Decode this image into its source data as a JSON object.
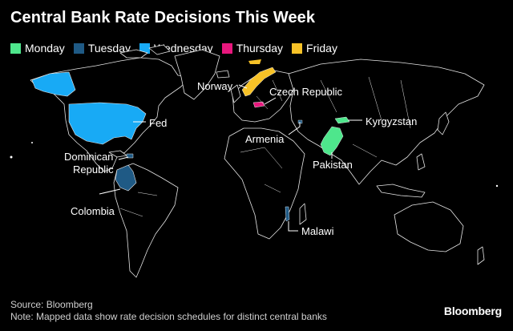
{
  "title": "Central Bank Rate Decisions This Week",
  "legend": [
    {
      "label": "Monday",
      "color": "#4ee68c"
    },
    {
      "label": "Tuesday",
      "color": "#1f5a85"
    },
    {
      "label": "Wednesday",
      "color": "#18aaf5"
    },
    {
      "label": "Thursday",
      "color": "#e8177d"
    },
    {
      "label": "Friday",
      "color": "#f7c227"
    }
  ],
  "countries": [
    {
      "name": "Fed",
      "day": "Wednesday"
    },
    {
      "name": "Dominican Republic",
      "line1": "Dominican",
      "line2": "Republic",
      "day": "Tuesday"
    },
    {
      "name": "Colombia",
      "day": "Tuesday"
    },
    {
      "name": "Norway",
      "day": "Friday"
    },
    {
      "name": "Czech Republic",
      "day": "Thursday"
    },
    {
      "name": "Armenia",
      "day": "Tuesday"
    },
    {
      "name": "Kyrgyzstan",
      "day": "Monday"
    },
    {
      "name": "Pakistan",
      "day": "Monday"
    },
    {
      "name": "Malawi",
      "day": "Tuesday"
    }
  ],
  "footer": {
    "source": "Source: Bloomberg",
    "note": "Note: Mapped data show rate decision schedules for distinct central banks"
  },
  "brand": "Bloomberg"
}
